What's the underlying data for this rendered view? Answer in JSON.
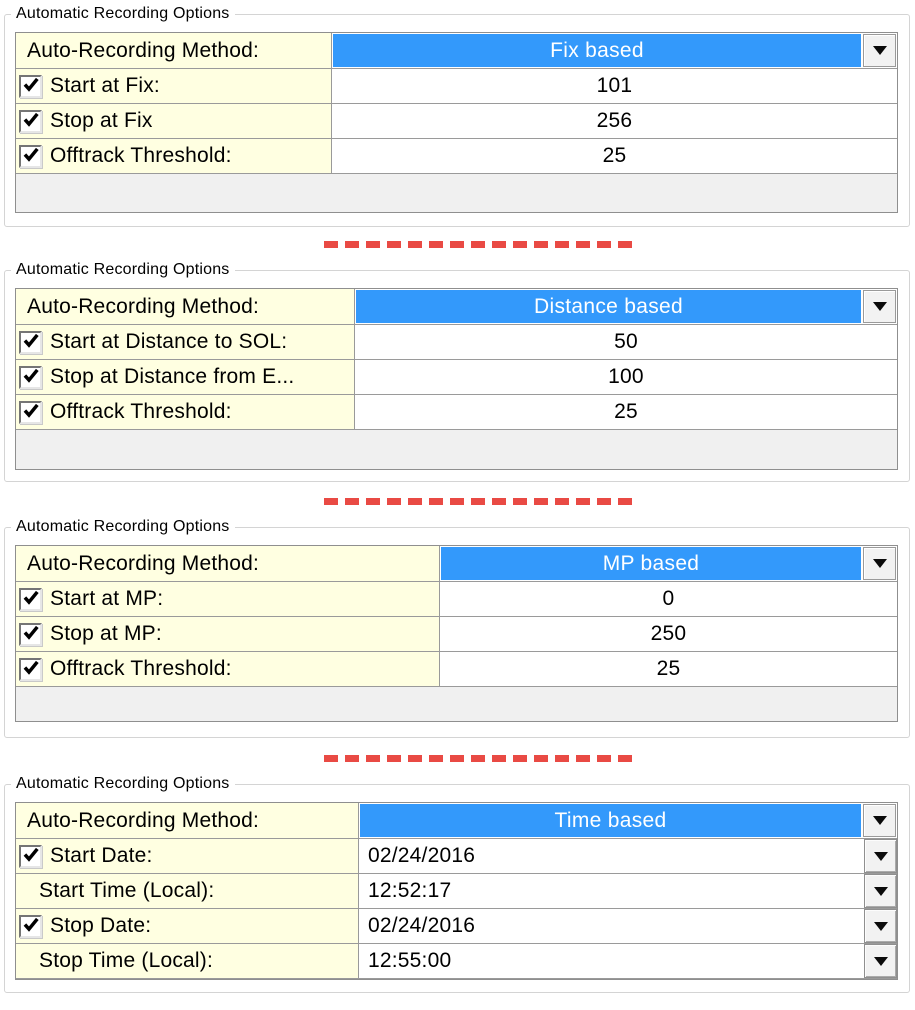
{
  "colors": {
    "accent_blue": "#3399FB",
    "label_yellow": "#FFFFE1",
    "separator_red": "#E94A44",
    "grid_gray": "#9A9A9A",
    "method_text_white": "#FFFFFF"
  },
  "separator": {
    "style": "red-dashed-line",
    "count": 3
  },
  "panels": [
    {
      "title": "Automatic Recording Options",
      "method_label": "Auto-Recording Method:",
      "method_value": "Fix based",
      "rows": [
        {
          "checkbox": true,
          "checked": true,
          "label": "Start at Fix:",
          "value": "101",
          "value_align": "center",
          "dropdown": false
        },
        {
          "checkbox": true,
          "checked": true,
          "label": "Stop at Fix",
          "value": "256",
          "value_align": "center",
          "dropdown": false
        },
        {
          "checkbox": true,
          "checked": true,
          "label": "Offtrack Threshold:",
          "value": "25",
          "value_align": "center",
          "dropdown": false
        }
      ]
    },
    {
      "title": "Automatic Recording Options",
      "method_label": "Auto-Recording Method:",
      "method_value": "Distance based",
      "rows": [
        {
          "checkbox": true,
          "checked": true,
          "label": "Start at Distance to SOL:",
          "value": "50",
          "value_align": "center",
          "dropdown": false
        },
        {
          "checkbox": true,
          "checked": true,
          "label": "Stop at Distance from E...",
          "value": "100",
          "value_align": "center",
          "dropdown": false
        },
        {
          "checkbox": true,
          "checked": true,
          "label": "Offtrack Threshold:",
          "value": "25",
          "value_align": "center",
          "dropdown": false
        }
      ]
    },
    {
      "title": "Automatic Recording Options",
      "method_label": "Auto-Recording Method:",
      "method_value": "MP based",
      "rows": [
        {
          "checkbox": true,
          "checked": true,
          "label": "Start at MP:",
          "value": "0",
          "value_align": "center",
          "dropdown": false
        },
        {
          "checkbox": true,
          "checked": true,
          "label": "Stop at MP:",
          "value": "250",
          "value_align": "center",
          "dropdown": false
        },
        {
          "checkbox": true,
          "checked": true,
          "label": "Offtrack Threshold:",
          "value": "25",
          "value_align": "center",
          "dropdown": false
        }
      ]
    },
    {
      "title": "Automatic Recording Options",
      "method_label": "Auto-Recording Method:",
      "method_value": "Time based",
      "rows": [
        {
          "checkbox": true,
          "checked": true,
          "label": "Start Date:",
          "value": "02/24/2016",
          "value_align": "left",
          "dropdown": true
        },
        {
          "checkbox": false,
          "checked": false,
          "label": "Start Time (Local):",
          "value": "12:52:17",
          "value_align": "left",
          "dropdown": true
        },
        {
          "checkbox": true,
          "checked": true,
          "label": "Stop Date:",
          "value": "02/24/2016",
          "value_align": "left",
          "dropdown": true
        },
        {
          "checkbox": false,
          "checked": false,
          "label": "Stop Time (Local):",
          "value": "12:55:00",
          "value_align": "left",
          "dropdown": true
        }
      ]
    }
  ]
}
